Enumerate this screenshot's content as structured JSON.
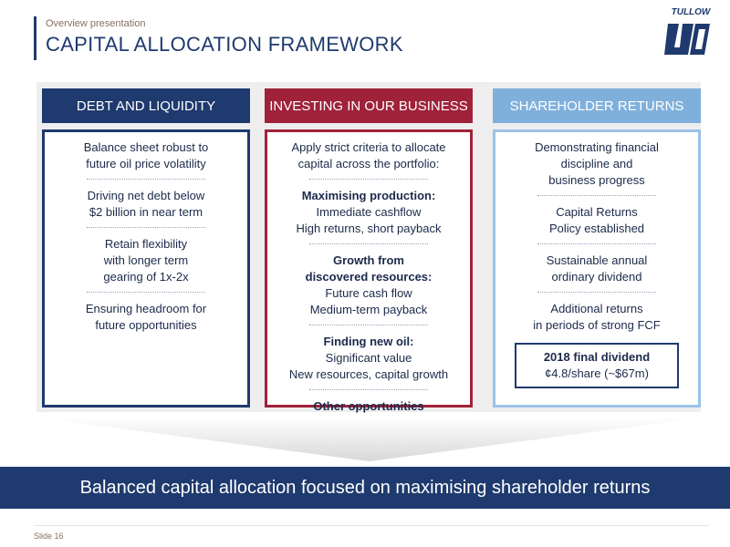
{
  "header": {
    "subtitle": "Overview presentation",
    "title": "CAPITAL ALLOCATION FRAMEWORK",
    "logo_text": "TULLOW"
  },
  "columns": [
    {
      "heading": "DEBT AND LIQUIDITY",
      "items": [
        [
          "Balance sheet robust to",
          "future oil price volatility"
        ],
        [
          "Driving net debt below",
          "$2 billion in near term"
        ],
        [
          "Retain flexibility",
          "with longer term",
          "gearing of 1x-2x"
        ],
        [
          "Ensuring headroom for",
          "future opportunities"
        ]
      ]
    },
    {
      "heading": "INVESTING IN OUR BUSINESS",
      "intro": [
        "Apply strict criteria to allocate",
        "capital across the portfolio:"
      ],
      "sections": [
        {
          "head": [
            "Maximising production:"
          ],
          "lines": [
            "Immediate cashflow",
            "High returns, short payback"
          ]
        },
        {
          "head": [
            "Growth from",
            "discovered resources:"
          ],
          "lines": [
            "Future cash flow",
            "Medium-term payback"
          ]
        },
        {
          "head": [
            "Finding new oil:"
          ],
          "lines": [
            "Significant value",
            "New resources, capital growth"
          ]
        },
        {
          "head": [
            "Other opportunities"
          ],
          "lines": []
        }
      ]
    },
    {
      "heading": "SHAREHOLDER RETURNS",
      "items": [
        [
          "Demonstrating financial",
          "discipline and",
          "business progress"
        ],
        [
          "Capital Returns",
          "Policy established"
        ],
        [
          "Sustainable annual",
          "ordinary dividend"
        ],
        [
          "Additional returns",
          "in periods of strong FCF"
        ]
      ],
      "dividend": {
        "title": "2018 final dividend",
        "value": "¢4.8/share (~$67m)"
      }
    }
  ],
  "banner": "Balanced capital allocation focused on maximising shareholder returns",
  "footer": {
    "slide_label": "Slide 16"
  },
  "colors": {
    "navy": "#1f3a6e",
    "crimson": "#a0223a",
    "light_blue": "#7fb0dc",
    "panel_grey": "#eeeeee"
  },
  "icons": [
    "tullow-logo-icon",
    "chevron-arrow-icon"
  ]
}
